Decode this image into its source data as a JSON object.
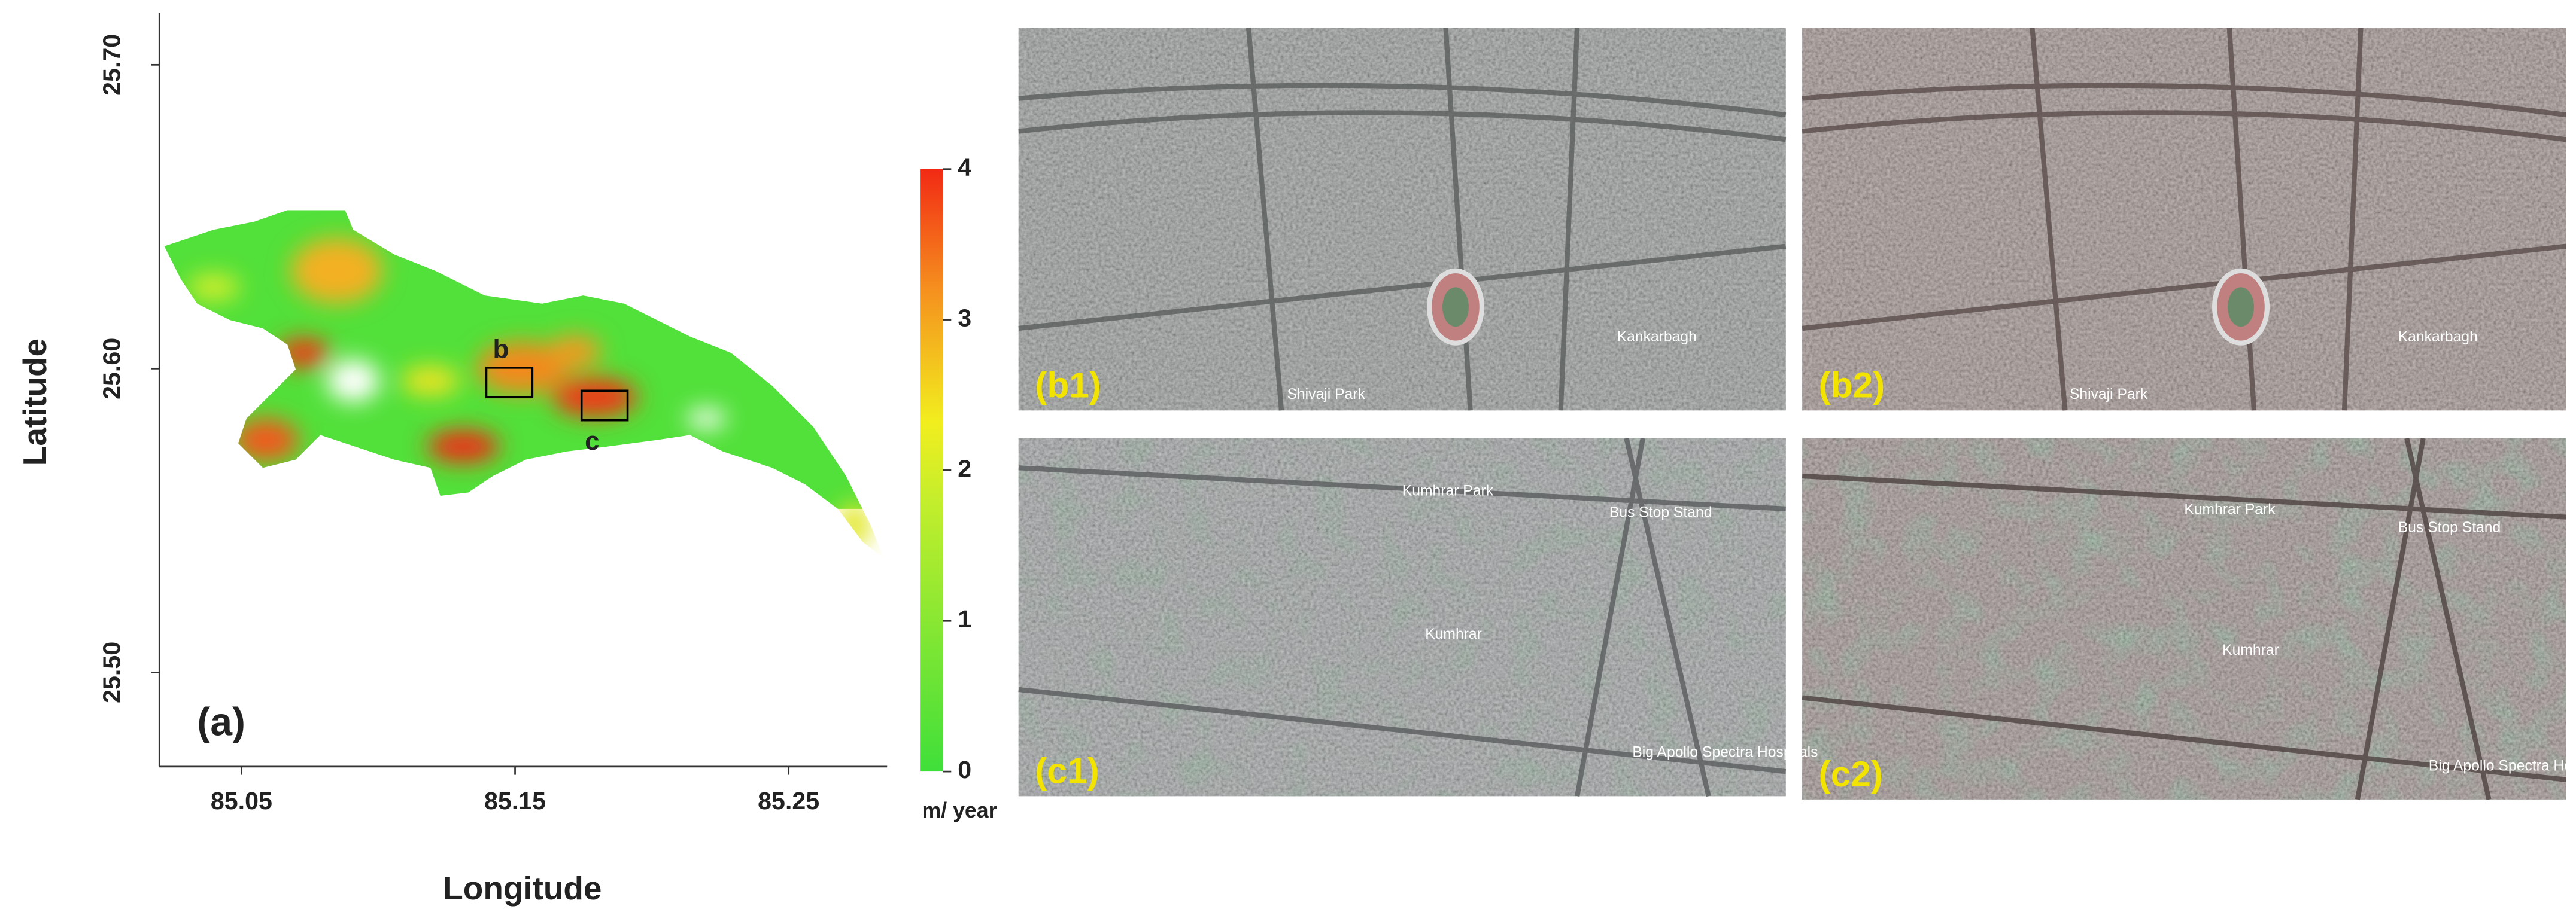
{
  "map": {
    "xlabel": "Longitude",
    "ylabel": "Latitude",
    "panel_label": "(a)",
    "box_labels": [
      "b",
      "c"
    ],
    "xlim": [
      85.02,
      85.286
    ],
    "ylim": [
      25.469,
      25.717
    ],
    "xticks": [
      85.05,
      85.15,
      85.25
    ],
    "yticks": [
      {
        "value": 25.5,
        "label": "25.50"
      },
      {
        "value": 25.6,
        "label": "25.60"
      },
      {
        "value": 25.7,
        "label": "25.70"
      }
    ]
  },
  "colorbar": {
    "lim": [
      0,
      4
    ],
    "ticks": [
      0,
      1,
      2,
      3,
      4
    ],
    "label": "m/ year"
  },
  "panels": [
    {
      "label": "(b1)",
      "places": [
        "Kankarbagh",
        "Shivaji Park"
      ]
    },
    {
      "label": "(b2)",
      "places": [
        "Kankarbagh",
        "Shivaji Park"
      ]
    },
    {
      "label": "(c1)",
      "places": [
        "Kumhrar Park",
        "Kumhrar",
        "Bus Stop Stand",
        "Big Apollo Spectra Hospitals"
      ]
    },
    {
      "label": "(c2)",
      "places": [
        "Kumhrar Park",
        "Kumhrar",
        "Bus Stop Stand",
        "Big Apollo Spectra Hospital"
      ]
    }
  ]
}
